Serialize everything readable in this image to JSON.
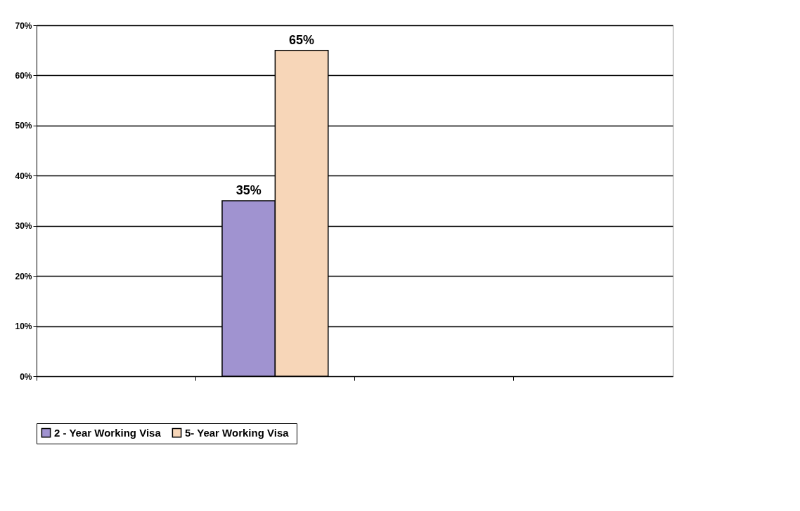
{
  "chart_data": {
    "type": "bar",
    "categories": [
      null,
      null,
      null,
      null
    ],
    "series": [
      {
        "name": "2 - Year Working Visa",
        "color": "#a093d0",
        "values": [
          null,
          35,
          null,
          null
        ],
        "value_labels": [
          null,
          "35%",
          null,
          null
        ]
      },
      {
        "name": "5-  Year Working Visa",
        "color": "#f7d6b8",
        "values": [
          null,
          65,
          null,
          null
        ],
        "value_labels": [
          null,
          "65%",
          null,
          null
        ]
      }
    ],
    "ylim": [
      0,
      70
    ],
    "yticks": [
      {
        "value": 0,
        "label": "0%"
      },
      {
        "value": 10,
        "label": "10%"
      },
      {
        "value": 20,
        "label": "20%"
      },
      {
        "value": 30,
        "label": "30%"
      },
      {
        "value": 40,
        "label": "40%"
      },
      {
        "value": 50,
        "label": "50%"
      },
      {
        "value": 60,
        "label": "60%"
      },
      {
        "value": 70,
        "label": "70%"
      }
    ],
    "grid": "y",
    "legend": "bottom",
    "tick_labels": "y"
  }
}
